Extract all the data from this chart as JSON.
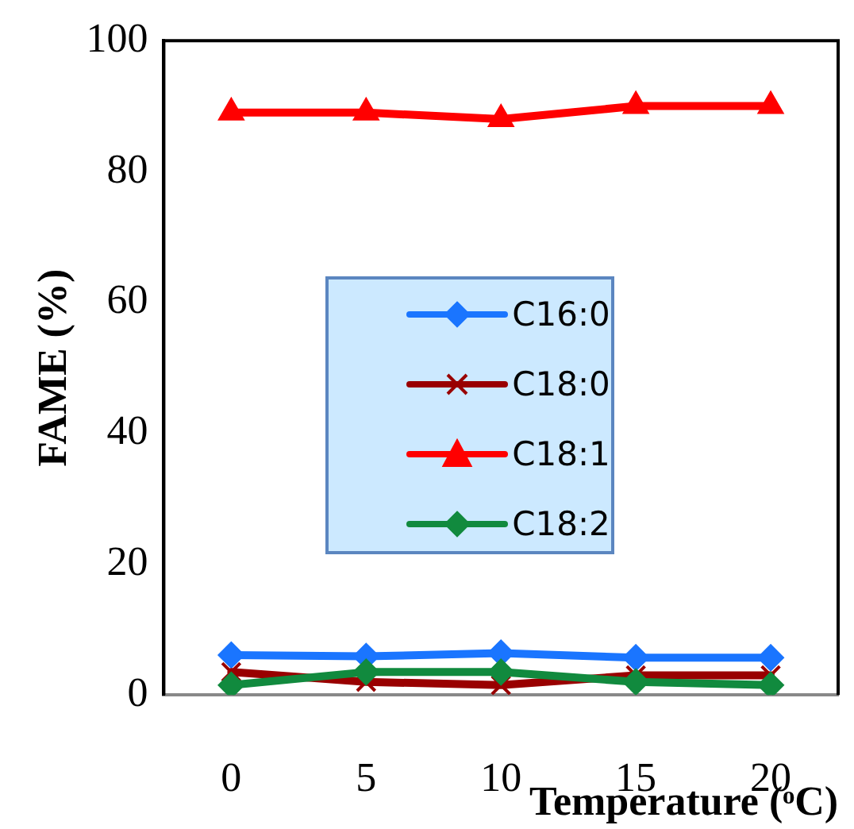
{
  "chart_data": {
    "type": "line",
    "xlabel": "Temperature (ᵒC)",
    "ylabel": "FAME (%)",
    "categories": [
      "0",
      "5",
      "10",
      "15",
      "20"
    ],
    "ylim": [
      0,
      100
    ],
    "yticks": [
      0,
      20,
      40,
      60,
      80,
      100
    ],
    "grid": false,
    "legend": "center",
    "series": [
      {
        "name": "C16:0",
        "color": "#1a75ff",
        "marker": "diamond",
        "values": [
          6.1,
          5.9,
          6.4,
          5.7,
          5.7
        ]
      },
      {
        "name": "C18:0",
        "color": "#990000",
        "marker": "cross",
        "values": [
          3.5,
          2,
          1.5,
          3,
          3
        ]
      },
      {
        "name": "C18:1",
        "color": "#ff0000",
        "marker": "triangle",
        "values": [
          89,
          89,
          88,
          90,
          90
        ]
      },
      {
        "name": "C18:2",
        "color": "#118a3e",
        "marker": "diamond",
        "values": [
          1.5,
          3.5,
          3.5,
          2,
          1.5
        ]
      }
    ]
  }
}
